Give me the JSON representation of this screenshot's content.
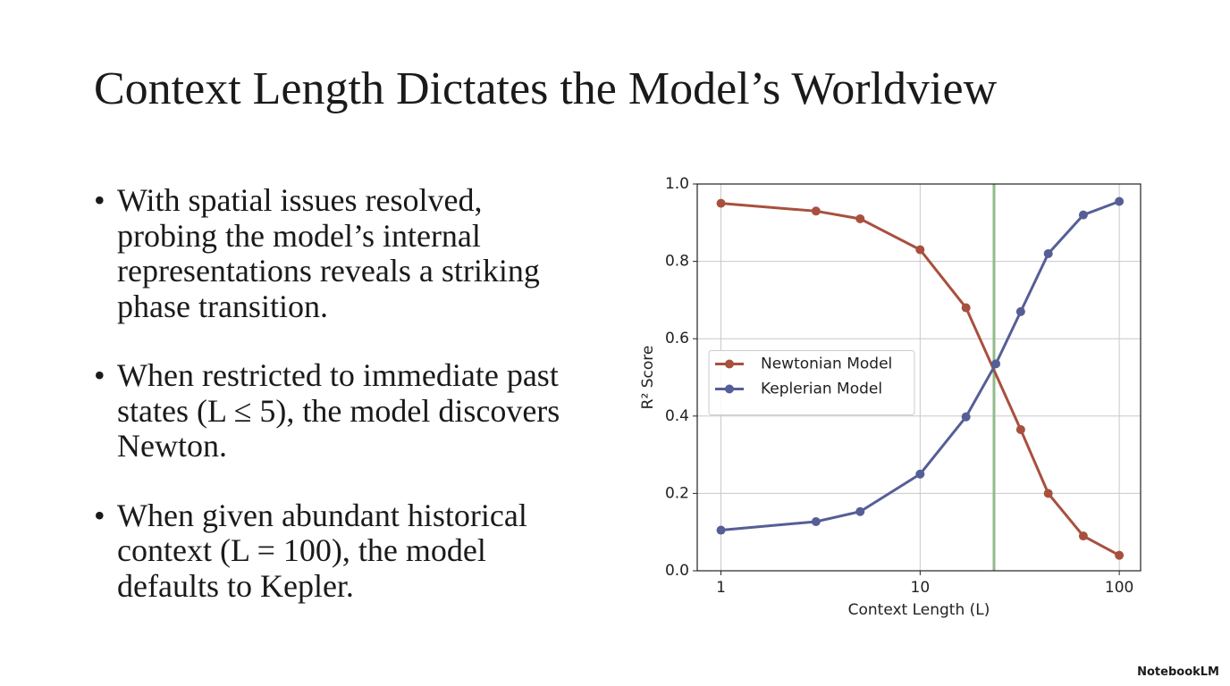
{
  "header": {
    "title": "Context Length Dictates the Model’s Worldview"
  },
  "bullets": [
    "With spatial issues resolved, probing the model’s internal representations reveals a striking phase transition.",
    "When restricted to immediate past states (L ≤ 5), the model discovers Newton.",
    "When given abundant historical context (L = 100), the model defaults to Kepler."
  ],
  "footer": {
    "brand": "NotebookLM"
  },
  "chart_data": {
    "type": "line",
    "xlabel": "Context Length (L)",
    "ylabel": "R² Score",
    "xscale": "log",
    "grid": true,
    "legend": "center left",
    "xlim": [
      0.76,
      128
    ],
    "ylim": [
      0,
      1
    ],
    "xticks": [
      1,
      10,
      100
    ],
    "yticks": [
      {
        "value": 0,
        "label": "0.0"
      },
      {
        "value": 0.2,
        "label": "0.2"
      },
      {
        "value": 0.4,
        "label": "0.4"
      },
      {
        "value": 0.6,
        "label": "0.6"
      },
      {
        "value": 0.8,
        "label": "0.8"
      },
      {
        "value": 1,
        "label": "1.0"
      }
    ],
    "vline": {
      "x": 23.5,
      "color": "#8fbb8a"
    },
    "series": [
      {
        "name": "Newtonian Model",
        "color": "#a8503e",
        "x": [
          1,
          3,
          5,
          10,
          17,
          32,
          44,
          66,
          100
        ],
        "values": [
          0.95,
          0.93,
          0.91,
          0.83,
          0.68,
          0.365,
          0.2,
          0.09,
          0.04
        ]
      },
      {
        "name": "Keplerian Model",
        "color": "#565e96",
        "x": [
          1,
          3,
          5,
          10,
          17,
          24,
          32,
          44,
          66,
          100
        ],
        "values": [
          0.105,
          0.127,
          0.153,
          0.25,
          0.398,
          0.535,
          0.67,
          0.82,
          0.92,
          0.955
        ]
      }
    ]
  }
}
